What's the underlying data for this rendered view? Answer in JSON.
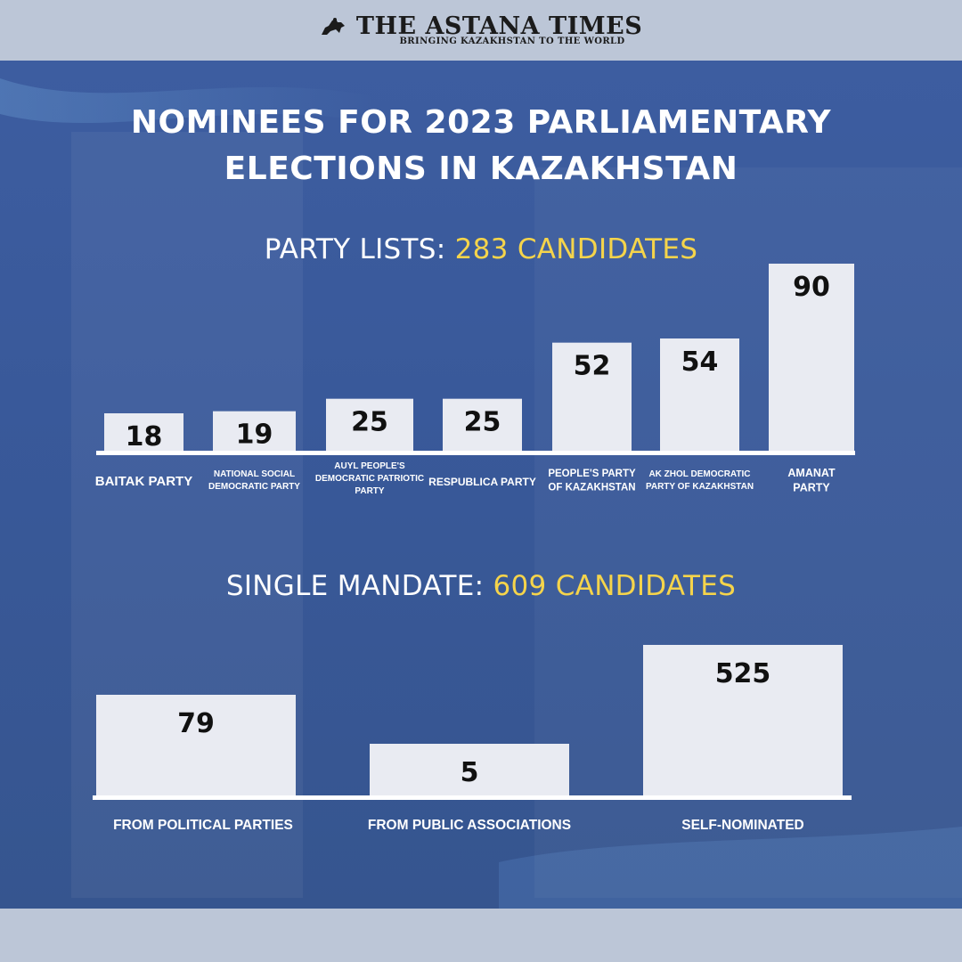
{
  "masthead": {
    "title": "THE ASTANA TIMES",
    "subtitle": "BRINGING KAZAKHSTAN TO THE WORLD"
  },
  "main_title_line1": "NOMINEES FOR 2023 PARLIAMENTARY",
  "main_title_line2": "ELECTIONS IN KAZAKHSTAN",
  "section1": {
    "label": "PARTY LISTS:",
    "total": "283 CANDIDATES"
  },
  "section2": {
    "label": "SINGLE MANDATE:",
    "total": "609 CANDIDATES"
  },
  "colors": {
    "accent": "#f5d44b",
    "bar": "#e9ebf2",
    "background": "#3a5a99"
  },
  "chart_data": [
    {
      "type": "bar",
      "title": "PARTY LISTS: 283 CANDIDATES",
      "categories": [
        [
          "BAITAK PARTY"
        ],
        [
          "NATIONAL SOCIAL",
          "DEMOCRATIC PARTY"
        ],
        [
          "AUYL PEOPLE'S",
          "DEMOCRATIC PATRIOTIC",
          "PARTY"
        ],
        [
          "RESPUBLICA PARTY"
        ],
        [
          "PEOPLE'S PARTY",
          "OF KAZAKHSTAN"
        ],
        [
          "AK ZHOL DEMOCRATIC",
          "PARTY OF KAZAKHSTAN"
        ],
        [
          "AMANAT",
          "PARTY"
        ]
      ],
      "values": [
        18,
        19,
        25,
        25,
        52,
        54,
        90
      ],
      "ylim": [
        0,
        90
      ],
      "grid": false
    },
    {
      "type": "bar",
      "title": "SINGLE MANDATE: 609 CANDIDATES",
      "categories": [
        [
          "FROM POLITICAL PARTIES"
        ],
        [
          "FROM PUBLIC ASSOCIATIONS"
        ],
        [
          "SELF-NOMINATED"
        ]
      ],
      "values": [
        79,
        5,
        525
      ],
      "grid": false
    }
  ]
}
